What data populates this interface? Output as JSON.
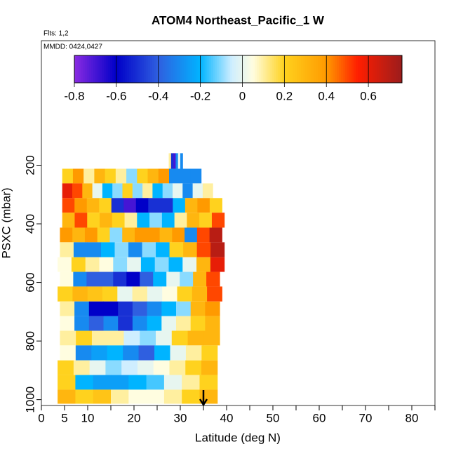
{
  "chart_data": {
    "type": "curtain",
    "title": "ATOM4 Northeast_Pacific_1 W",
    "flights_note": "Flts: 1,2",
    "date_note": "MMDD: 0424,0427",
    "xlabel": "Latitude (deg N)",
    "ylabel": "PSXC (mbar)",
    "xlim": [
      0,
      85
    ],
    "xticks": [
      0,
      5,
      10,
      20,
      30,
      40,
      50,
      60,
      70,
      80
    ],
    "xminorticks": [
      15,
      25,
      35,
      45,
      55,
      65,
      75,
      85
    ],
    "ylim": [
      1020,
      -225
    ],
    "yticks": [
      200,
      400,
      600,
      800,
      1000
    ],
    "colorbar_lim": [
      -0.8,
      0.76
    ],
    "colorbar_ticks": [
      -0.8,
      -0.6,
      -0.4,
      -0.2,
      0.0,
      0.2,
      0.4,
      0.6
    ],
    "colorscale": [
      [
        -0.8,
        "#8a2be2"
      ],
      [
        -0.6,
        "#0000c8"
      ],
      [
        -0.4,
        "#2f5fe0"
      ],
      [
        -0.2,
        "#00b4ff"
      ],
      [
        -0.05,
        "#cfeeff"
      ],
      [
        0.05,
        "#fffde0"
      ],
      [
        0.2,
        "#ffd21e"
      ],
      [
        0.4,
        "#ff9a00"
      ],
      [
        0.55,
        "#ff1e00"
      ],
      [
        0.76,
        "#9b1c1c"
      ]
    ],
    "arrow_lat": 35,
    "rows": [
      {
        "p": [
          159,
          212
        ],
        "lat": [
          27.5,
          30.5
        ],
        "values": [
          0.1,
          -0.5,
          -0.7,
          -0.3,
          0.0,
          -0.3
        ]
      },
      {
        "p": [
          212,
          262
        ],
        "lat": [
          4.5,
          34.5
        ],
        "values": [
          0.2,
          0.4,
          0.1,
          0.3,
          0.2,
          0.1,
          -0.1,
          0.2,
          0.3,
          0.4,
          -0.3,
          -0.3,
          -0.3
        ]
      },
      {
        "p": [
          262,
          312
        ],
        "lat": [
          4.5,
          37
        ],
        "values": [
          0.6,
          0.5,
          0.3,
          0.0,
          -0.2,
          -0.1,
          0.2,
          -0.1,
          0.1,
          -0.2,
          -0.1,
          0.0,
          -0.3,
          0.0,
          0.1
        ]
      },
      {
        "p": [
          312,
          362
        ],
        "lat": [
          4.5,
          39
        ],
        "values": [
          0.5,
          0.4,
          0.3,
          0.2,
          -0.5,
          -0.7,
          -0.6,
          -0.5,
          -0.5,
          -0.2,
          0.3,
          0.4,
          0.2
        ]
      },
      {
        "p": [
          362,
          413
        ],
        "lat": [
          4.5,
          39.5
        ],
        "values": [
          0.3,
          0.5,
          0.2,
          0.3,
          0.2,
          0.1,
          -0.2,
          -0.1,
          -0.2,
          0.1,
          0.3,
          0.2,
          0.5
        ]
      },
      {
        "p": [
          413,
          463
        ],
        "lat": [
          4,
          39
        ],
        "values": [
          0.4,
          0.3,
          0.4,
          0.2,
          -0.1,
          0.3,
          0.4,
          0.4,
          0.3,
          0.4,
          -0.3,
          0.5,
          0.7
        ]
      },
      {
        "p": [
          463,
          514
        ],
        "lat": [
          4,
          39.5
        ],
        "values": [
          0.1,
          -0.3,
          -0.3,
          -0.2,
          -0.1,
          -0.3,
          -0.1,
          -0.2,
          0.2,
          0.3,
          0.5,
          0.7
        ]
      },
      {
        "p": [
          514,
          564
        ],
        "lat": [
          3.5,
          39.5
        ],
        "values": [
          0.05,
          0.2,
          0.1,
          0.05,
          -0.1,
          0.0,
          -0.2,
          -0.1,
          -0.2,
          0.0,
          0.3,
          0.6
        ]
      },
      {
        "p": [
          564,
          614
        ],
        "lat": [
          4,
          38.5
        ],
        "values": [
          0.05,
          -0.3,
          -0.4,
          -0.4,
          -0.5,
          -0.6,
          -0.4,
          -0.2,
          0.0,
          -0.1,
          0.3,
          0.5
        ]
      },
      {
        "p": [
          614,
          665
        ],
        "lat": [
          3.5,
          39
        ],
        "values": [
          0.2,
          0.3,
          0.25,
          0.2,
          0.0,
          0.1,
          0.0,
          0.05,
          0.2,
          0.3,
          0.5
        ]
      },
      {
        "p": [
          665,
          715
        ],
        "lat": [
          4,
          38.5
        ],
        "values": [
          0.1,
          -0.3,
          -0.6,
          -0.6,
          -0.5,
          -0.4,
          -0.3,
          -0.2,
          -0.1,
          0.3,
          0.4
        ]
      },
      {
        "p": [
          715,
          765
        ],
        "lat": [
          4,
          38.5
        ],
        "values": [
          0.05,
          -0.3,
          -0.4,
          -0.3,
          -0.5,
          -0.3,
          -0.2,
          0.0,
          0.1,
          0.2,
          0.3
        ]
      },
      {
        "p": [
          765,
          815
        ],
        "lat": [
          4,
          38.5
        ],
        "values": [
          0.1,
          0.2,
          0.1,
          0.1,
          -0.05,
          -0.1,
          0.0,
          0.2,
          0.3,
          0.3
        ]
      },
      {
        "p": [
          815,
          866
        ],
        "lat": [
          4,
          38
        ],
        "values": [
          0.05,
          -0.3,
          -0.25,
          -0.2,
          -0.3,
          -0.4,
          -0.2,
          0.0,
          0.1,
          0.2
        ]
      },
      {
        "p": [
          866,
          916
        ],
        "lat": [
          3.5,
          38
        ],
        "values": [
          0.2,
          0.1,
          0.0,
          -0.1,
          -0.05,
          0.0,
          0.05,
          0.1,
          0.2,
          0.3
        ]
      },
      {
        "p": [
          916,
          966
        ],
        "lat": [
          3.5,
          38
        ],
        "values": [
          0.2,
          -0.2,
          -0.25,
          -0.25,
          -0.2,
          -0.15,
          0.0,
          0.1,
          0.2
        ]
      },
      {
        "p": [
          966,
          1014
        ],
        "lat": [
          3.5,
          38
        ],
        "values": [
          0.3,
          0.2,
          0.25,
          0.1,
          0.05,
          0.05,
          0.1,
          0.2,
          0.3
        ]
      }
    ]
  }
}
